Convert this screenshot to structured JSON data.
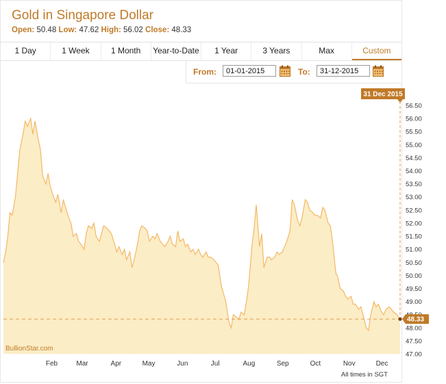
{
  "header": {
    "title": "Gold in Singapore Dollar",
    "open_label": "Open:",
    "open_value": "50.48",
    "low_label": "Low:",
    "low_value": "47.62",
    "high_label": "High:",
    "high_value": "56.02",
    "close_label": "Close:",
    "close_value": "48.33"
  },
  "tabs": [
    {
      "label": "1 Day"
    },
    {
      "label": "1 Week"
    },
    {
      "label": "1 Month"
    },
    {
      "label": "Year-to-Date"
    },
    {
      "label": "1 Year"
    },
    {
      "label": "3 Years"
    },
    {
      "label": "Max"
    },
    {
      "label": "Custom"
    }
  ],
  "active_tab": "Custom",
  "range": {
    "from_label": "From:",
    "from_value": "01-01-2015",
    "to_label": "To:",
    "to_value": "31-12-2015"
  },
  "colors": {
    "accent": "#c07a28",
    "area_fill": "#fbedc6",
    "line": "#f5b765"
  },
  "chart_data": {
    "type": "area",
    "watermark": "BullionStar.com",
    "footnote": "All times in SGT",
    "x_ticks": [
      "Feb",
      "Mar",
      "Apr",
      "May",
      "Jun",
      "Jul",
      "Aug",
      "Sep",
      "Oct",
      "Nov",
      "Dec"
    ],
    "y_ticks": [
      "47.00",
      "47.50",
      "48.00",
      "48.50",
      "49.00",
      "49.50",
      "50.00",
      "50.50",
      "51.00",
      "51.50",
      "52.00",
      "52.50",
      "53.00",
      "53.50",
      "54.00",
      "54.50",
      "55.00",
      "55.50",
      "56.00",
      "56.50"
    ],
    "ylim": [
      47.0,
      56.5
    ],
    "xlim": [
      "2015-01-01",
      "2015-12-31"
    ],
    "grid": false,
    "last_date_label": "31 Dec 2015",
    "last_value_label": "48.33",
    "last_value": 48.33,
    "series": [
      {
        "x": [
          "2015-01-01",
          "2015-01-03",
          "2015-01-05",
          "2015-01-07",
          "2015-01-09",
          "2015-01-12",
          "2015-01-14",
          "2015-01-16",
          "2015-01-19",
          "2015-01-21",
          "2015-01-23",
          "2015-01-26",
          "2015-01-28",
          "2015-01-30",
          "2015-02-02",
          "2015-02-04",
          "2015-02-06",
          "2015-02-09",
          "2015-02-11",
          "2015-02-13",
          "2015-02-16",
          "2015-02-18",
          "2015-02-20",
          "2015-02-23",
          "2015-02-25",
          "2015-02-27",
          "2015-03-02",
          "2015-03-04",
          "2015-03-06",
          "2015-03-09",
          "2015-03-11",
          "2015-03-13",
          "2015-03-16",
          "2015-03-18",
          "2015-03-20",
          "2015-03-23",
          "2015-03-25",
          "2015-03-27",
          "2015-03-30",
          "2015-04-01",
          "2015-04-03",
          "2015-04-06",
          "2015-04-08",
          "2015-04-10",
          "2015-04-13",
          "2015-04-15",
          "2015-04-17",
          "2015-04-20",
          "2015-04-22",
          "2015-04-24",
          "2015-04-27",
          "2015-04-29",
          "2015-05-01",
          "2015-05-04",
          "2015-05-06",
          "2015-05-08",
          "2015-05-11",
          "2015-05-13",
          "2015-05-15",
          "2015-05-18",
          "2015-05-20",
          "2015-05-22",
          "2015-05-25",
          "2015-05-27",
          "2015-05-29",
          "2015-06-01",
          "2015-06-03",
          "2015-06-05",
          "2015-06-08",
          "2015-06-10",
          "2015-06-12",
          "2015-06-15",
          "2015-06-17",
          "2015-06-19",
          "2015-06-22",
          "2015-06-24",
          "2015-06-26",
          "2015-06-29",
          "2015-07-01",
          "2015-07-03",
          "2015-07-06",
          "2015-07-08",
          "2015-07-10",
          "2015-07-13",
          "2015-07-15",
          "2015-07-17",
          "2015-07-20",
          "2015-07-22",
          "2015-07-24",
          "2015-07-27",
          "2015-07-29",
          "2015-07-31",
          "2015-08-03",
          "2015-08-05",
          "2015-08-07",
          "2015-08-10",
          "2015-08-12",
          "2015-08-14",
          "2015-08-17",
          "2015-08-19",
          "2015-08-21",
          "2015-08-24",
          "2015-08-26",
          "2015-08-28",
          "2015-08-31",
          "2015-09-02",
          "2015-09-04",
          "2015-09-07",
          "2015-09-09",
          "2015-09-11",
          "2015-09-14",
          "2015-09-16",
          "2015-09-18",
          "2015-09-21",
          "2015-09-23",
          "2015-09-25",
          "2015-09-28",
          "2015-09-30",
          "2015-10-02",
          "2015-10-05",
          "2015-10-07",
          "2015-10-09",
          "2015-10-12",
          "2015-10-14",
          "2015-10-16",
          "2015-10-19",
          "2015-10-21",
          "2015-10-23",
          "2015-10-26",
          "2015-10-28",
          "2015-10-30",
          "2015-11-02",
          "2015-11-04",
          "2015-11-06",
          "2015-11-09",
          "2015-11-11",
          "2015-11-13",
          "2015-11-16",
          "2015-11-18",
          "2015-11-20",
          "2015-11-23",
          "2015-11-25",
          "2015-11-27",
          "2015-11-30",
          "2015-12-02",
          "2015-12-04",
          "2015-12-07",
          "2015-12-09",
          "2015-12-11",
          "2015-12-14",
          "2015-12-16",
          "2015-12-18",
          "2015-12-21",
          "2015-12-23",
          "2015-12-25",
          "2015-12-28",
          "2015-12-31"
        ],
        "y": [
          50.48,
          50.9,
          51.5,
          52.4,
          52.3,
          53.0,
          53.9,
          54.8,
          55.4,
          55.9,
          55.7,
          56.0,
          55.4,
          55.9,
          55.2,
          54.8,
          53.8,
          53.5,
          53.9,
          53.4,
          53.0,
          52.8,
          53.1,
          52.4,
          52.9,
          52.6,
          52.2,
          52.0,
          51.5,
          51.6,
          51.3,
          51.2,
          51.0,
          51.6,
          51.9,
          51.8,
          52.0,
          51.5,
          51.3,
          51.6,
          51.9,
          51.8,
          51.7,
          51.6,
          51.2,
          50.9,
          51.1,
          50.8,
          51.0,
          50.6,
          50.9,
          50.3,
          50.6,
          51.2,
          51.7,
          51.9,
          51.8,
          51.7,
          51.3,
          51.5,
          51.4,
          51.6,
          51.3,
          51.2,
          51.1,
          51.3,
          51.5,
          51.2,
          51.1,
          51.7,
          51.3,
          51.4,
          51.1,
          51.2,
          50.9,
          51.0,
          50.8,
          51.0,
          50.8,
          50.7,
          50.9,
          50.7,
          50.7,
          50.6,
          50.5,
          50.4,
          49.6,
          49.3,
          49.0,
          48.2,
          48.0,
          48.5,
          48.4,
          48.3,
          48.6,
          48.5,
          49.0,
          49.6,
          51.1,
          51.8,
          52.7,
          51.1,
          51.6,
          50.3,
          50.7,
          50.7,
          50.6,
          50.7,
          50.9,
          50.8,
          50.9,
          51.1,
          51.3,
          51.7,
          52.9,
          52.7,
          52.1,
          51.9,
          52.2,
          52.9,
          52.8,
          52.5,
          52.4,
          52.3,
          52.3,
          52.2,
          52.6,
          52.5,
          52.0,
          51.9,
          51.3,
          50.1,
          49.9,
          49.5,
          49.4,
          49.2,
          49.1,
          49.2,
          48.9,
          48.9,
          48.7,
          48.8,
          48.5,
          48.0,
          47.9,
          48.5,
          49.0,
          48.8,
          48.9,
          48.6,
          48.5,
          48.7,
          48.8,
          48.7,
          48.6,
          48.5,
          48.33
        ]
      }
    ]
  }
}
